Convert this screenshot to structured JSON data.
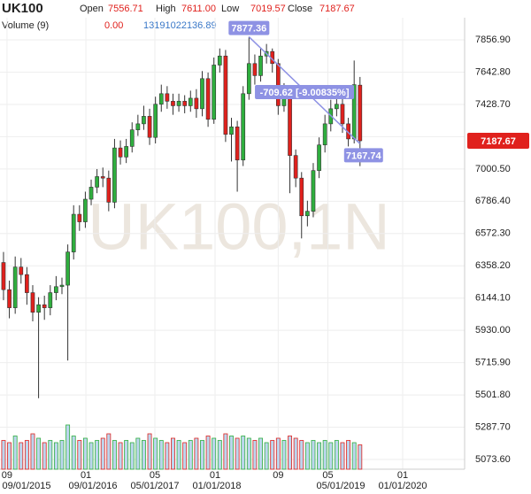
{
  "chart_data": {
    "type": "candlestick",
    "title": "UK100",
    "watermark": "UK100,1N",
    "legend": {
      "open_name": "Open",
      "open": "7556.71",
      "high_name": "High",
      "high": "7611.00",
      "low_name": "Low",
      "low": "7019.57",
      "close_name": "Close",
      "close": "7187.67",
      "volume_name": "Volume (9)",
      "volume_a": "0.00",
      "volume_b": "13191022136.89"
    },
    "up_color": "#2fae3e",
    "down_color": "#e0211d",
    "open": [
      6380,
      6200,
      6080,
      6350,
      6300,
      6180,
      6050,
      6100,
      6080,
      6180,
      6220,
      6230,
      6450,
      6700,
      6650,
      6800,
      6880,
      6950,
      6940,
      6780,
      7140,
      7080,
      7150,
      7260,
      7300,
      7350,
      7210,
      7430,
      7500,
      7450,
      7420,
      7450,
      7420,
      7470,
      7400,
      7600,
      7330,
      7690,
      7750,
      7230,
      7280,
      7060,
      7500,
      7700,
      7620,
      7750,
      7780,
      7700,
      7420,
      7510,
      7090,
      6940,
      6690,
      6720,
      6990,
      7160,
      7300,
      7400,
      7430,
      7300,
      7200,
      7556.71
    ],
    "high": [
      6450,
      6260,
      6420,
      6410,
      6350,
      6230,
      6150,
      6160,
      6230,
      6290,
      6280,
      6500,
      6760,
      6760,
      6850,
      6930,
      7000,
      7010,
      6990,
      7200,
      7190,
      7200,
      7310,
      7360,
      7420,
      7400,
      7480,
      7560,
      7550,
      7500,
      7500,
      7490,
      7520,
      7530,
      7650,
      7640,
      7740,
      7800,
      7790,
      7340,
      7320,
      7550,
      7877.36,
      7760,
      7800,
      7830,
      7800,
      7730,
      7570,
      7540,
      7130,
      6980,
      6790,
      7040,
      7210,
      7360,
      7460,
      7500,
      7470,
      7340,
      7720,
      7611
    ],
    "low": [
      6130,
      6010,
      6040,
      6240,
      6100,
      5990,
      5480,
      6000,
      6030,
      6130,
      6170,
      5730,
      6400,
      6590,
      6610,
      6760,
      6840,
      6880,
      6720,
      6740,
      7030,
      7040,
      7110,
      7220,
      7260,
      7160,
      7170,
      7380,
      7400,
      7360,
      7380,
      7370,
      7380,
      7340,
      7350,
      7280,
      7300,
      7640,
      7180,
      7050,
      6850,
      7020,
      7460,
      7560,
      7580,
      7700,
      7640,
      7360,
      7380,
      6840,
      6880,
      6540,
      6620,
      6680,
      6940,
      7110,
      7250,
      7350,
      7240,
      7150,
      7170,
      7019.57
    ],
    "close": [
      6200,
      6080,
      6350,
      6300,
      6180,
      6050,
      6100,
      6080,
      6180,
      6220,
      6230,
      6450,
      6700,
      6650,
      6800,
      6880,
      6950,
      6940,
      6780,
      7140,
      7080,
      7150,
      7260,
      7300,
      7350,
      7210,
      7430,
      7500,
      7450,
      7420,
      7450,
      7420,
      7470,
      7400,
      7600,
      7330,
      7690,
      7750,
      7230,
      7280,
      7060,
      7500,
      7700,
      7620,
      7750,
      7780,
      7700,
      7420,
      7510,
      7090,
      6940,
      6690,
      6720,
      6990,
      7160,
      7300,
      7400,
      7430,
      7300,
      7200,
      7560,
      7187.67
    ],
    "volume": [
      13000000000.0,
      12000000000.0,
      15000000000.0,
      12000000000.0,
      13000000000.0,
      16000000000.0,
      14000000000.0,
      12000000000.0,
      13000000000.0,
      12000000000.0,
      13000000000.0,
      20000000000.0,
      15000000000.0,
      13000000000.0,
      14000000000.0,
      12000000000.0,
      13000000000.0,
      14000000000.0,
      16000000000.0,
      13000000000.0,
      12000000000.0,
      13000000000.0,
      12000000000.0,
      14000000000.0,
      13000000000.0,
      16000000000.0,
      14000000000.0,
      13000000000.0,
      12000000000.0,
      14000000000.0,
      13000000000.0,
      12000000000.0,
      13000000000.0,
      14000000000.0,
      13000000000.0,
      15000000000.0,
      14000000000.0,
      13000000000.0,
      16000000000.0,
      15000000000.0,
      14000000000.0,
      15000000000.0,
      14000000000.0,
      13000000000.0,
      14000000000.0,
      12000000000.0,
      13000000000.0,
      14000000000.0,
      13000000000.0,
      15000000000.0,
      14000000000.0,
      13000000000.0,
      12000000000.0,
      13000000000.0,
      12000000000.0,
      13000000000.0,
      12000000000.0,
      13000000000.0,
      12000000000.0,
      13000000000.0,
      12000000000.0,
      11000000000.0
    ],
    "volume_color": "#bcd6ee",
    "y2lim": [
      0,
      40000000000.0
    ],
    "ylim": [
      5009,
      8004
    ],
    "yticks": [
      {
        "value": 5073.6,
        "label": "5073.60"
      },
      {
        "value": 5287.7,
        "label": "5287.70"
      },
      {
        "value": 5501.8,
        "label": "5501.80"
      },
      {
        "value": 5715.9,
        "label": "5715.90"
      },
      {
        "value": 5930,
        "label": "5930.00"
      },
      {
        "value": 6144.1,
        "label": "6144.10"
      },
      {
        "value": 6358.2,
        "label": "6358.20"
      },
      {
        "value": 6572.3,
        "label": "6572.30"
      },
      {
        "value": 6786.4,
        "label": "6786.40"
      },
      {
        "value": 7000.5,
        "label": "7000.50"
      },
      {
        "value": 7214.6,
        "label": "7214.60"
      },
      {
        "value": 7428.7,
        "label": "7428.70"
      },
      {
        "value": 7642.8,
        "label": "7642.80"
      },
      {
        "value": 7856.9,
        "label": "7856.90"
      }
    ],
    "xlim": [
      -0.6,
      78.9
    ],
    "xticks": [
      {
        "value": 0.6,
        "label": "09"
      },
      {
        "value": 14.1,
        "label": "01"
      },
      {
        "value": 25.9,
        "label": "05"
      },
      {
        "value": 36.2,
        "label": "01"
      },
      {
        "value": 47,
        "label": "09"
      },
      {
        "value": 55.5,
        "label": "05"
      },
      {
        "value": 68.3,
        "label": "01"
      }
    ],
    "xticks_dates": [
      {
        "value": 3.9,
        "label": "09/01/2015"
      },
      {
        "value": 15.3,
        "label": "09/01/2016"
      },
      {
        "value": 25.9,
        "label": "05/01/2017"
      },
      {
        "value": 36.5,
        "label": "01/01/2018"
      },
      {
        "value": 57.7,
        "label": "05/01/2019"
      },
      {
        "value": 68.3,
        "label": "01/01/2020"
      }
    ],
    "grid": true,
    "measure": {
      "from": 7877.36,
      "to": 7167.74,
      "label": "-709.62 [-9.00835%]",
      "color": "#8e92e4"
    }
  }
}
